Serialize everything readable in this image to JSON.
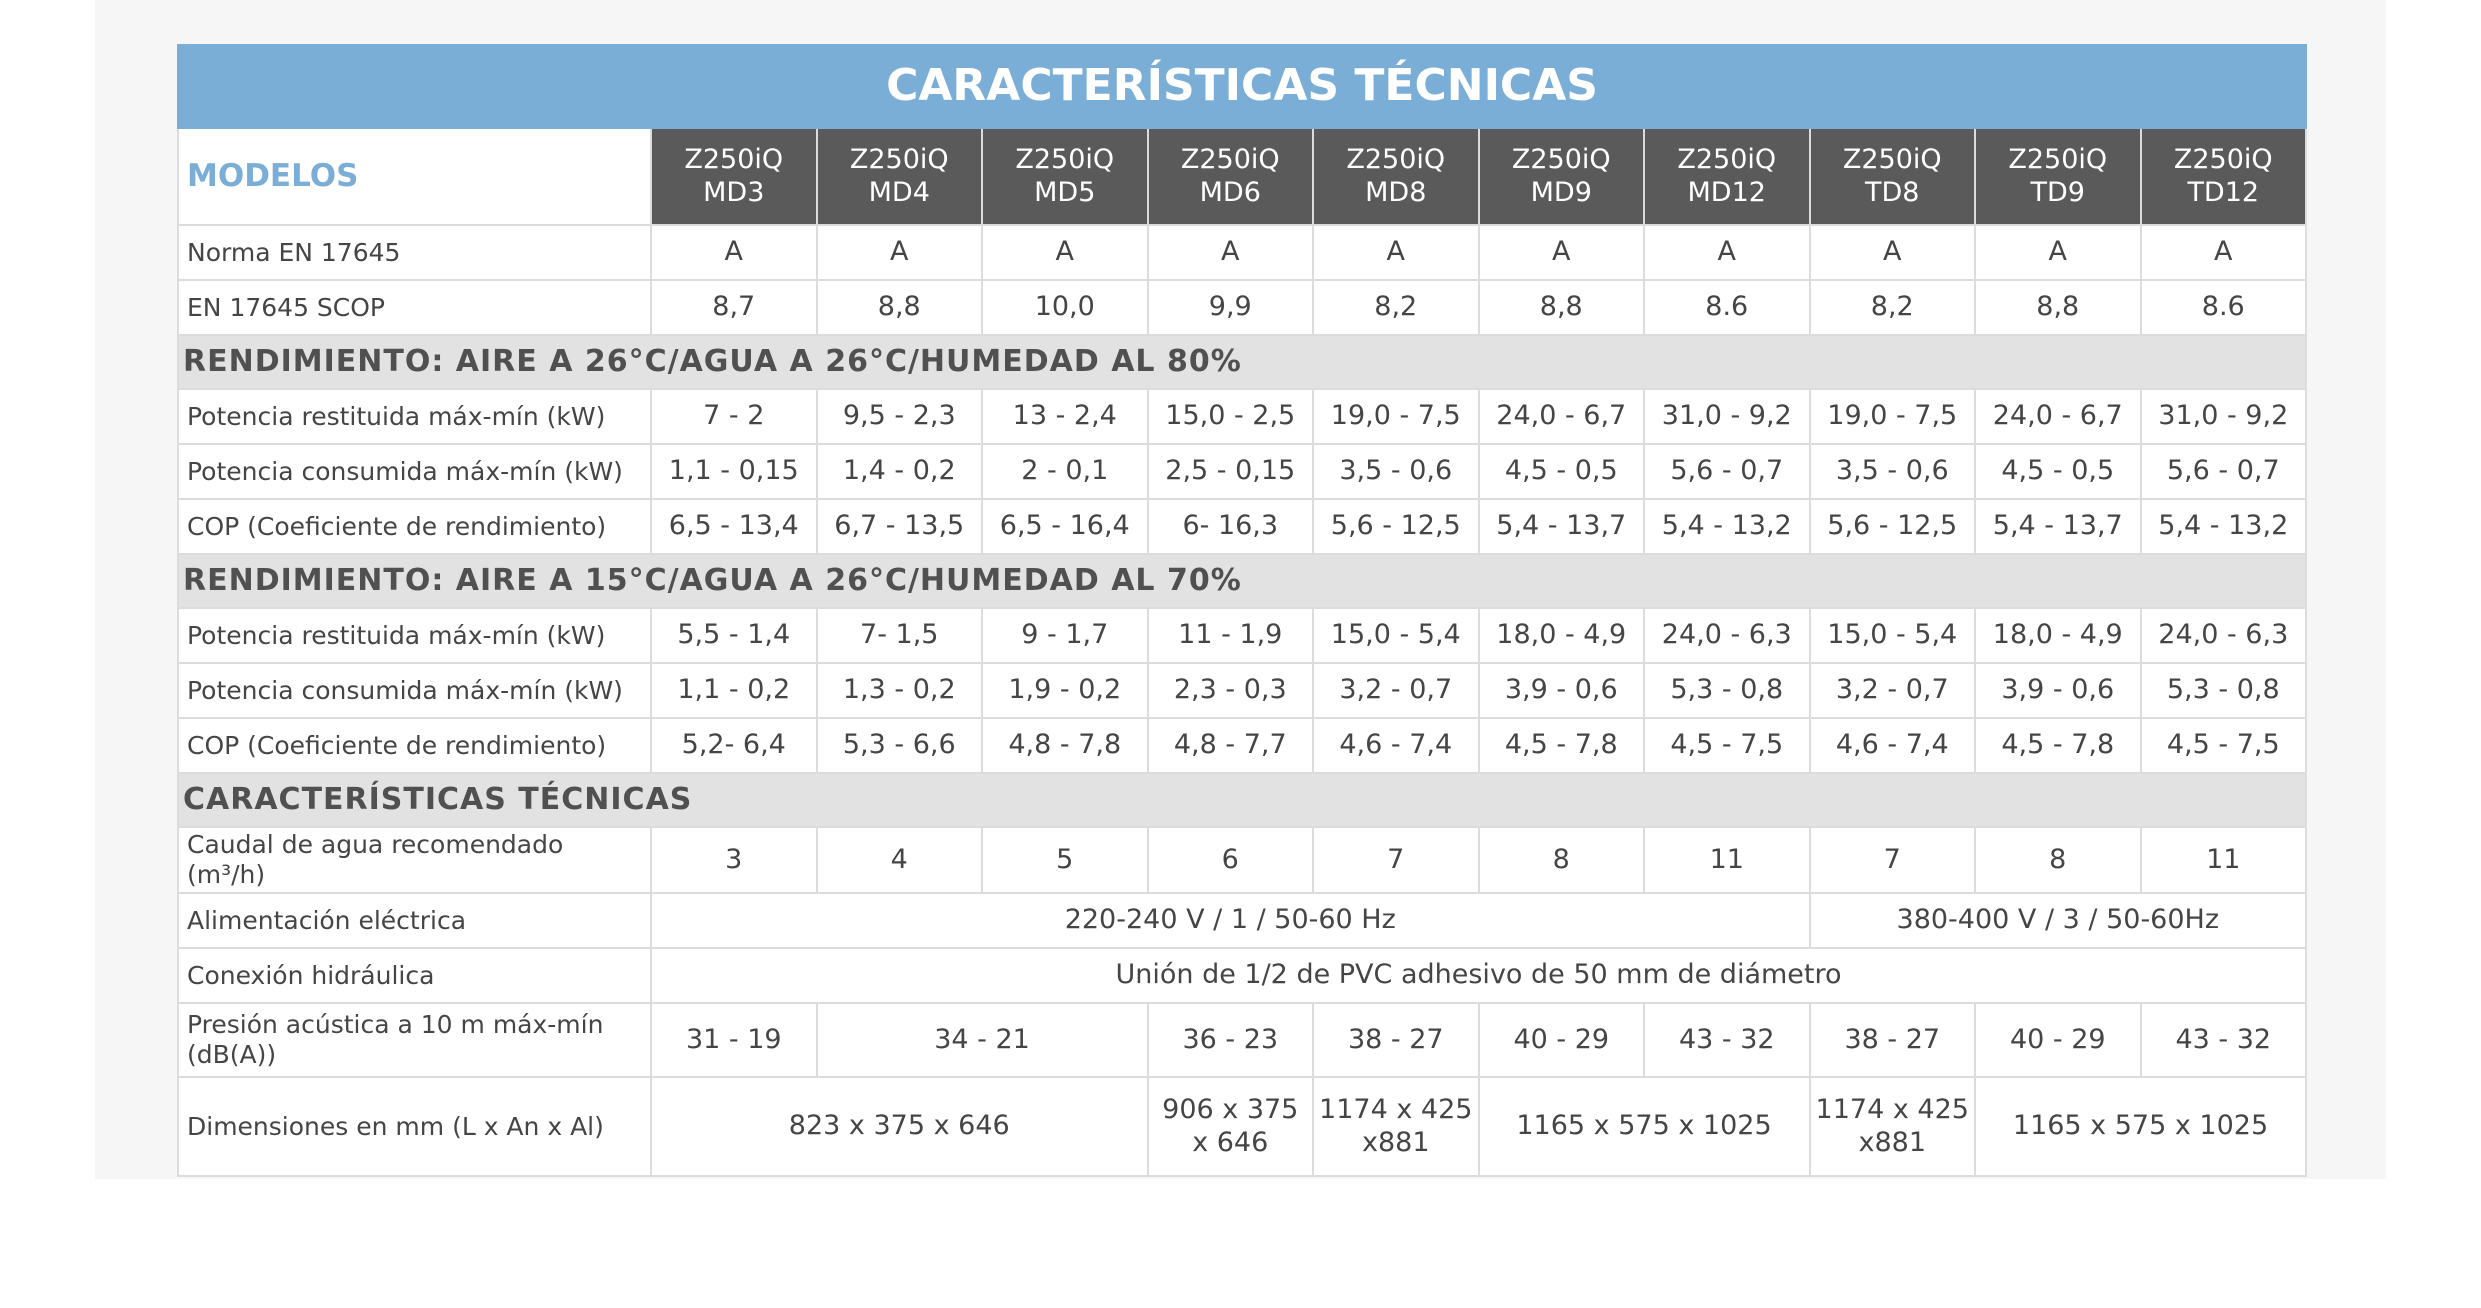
{
  "title": "CARACTERÍSTICAS TÉCNICAS",
  "table": {
    "header": {
      "label": "MODELOS",
      "models": [
        [
          "Z250iQ",
          "MD3"
        ],
        [
          "Z250iQ",
          "MD4"
        ],
        [
          "Z250iQ",
          "MD5"
        ],
        [
          "Z250iQ",
          "MD6"
        ],
        [
          "Z250iQ",
          "MD8"
        ],
        [
          "Z250iQ",
          "MD9"
        ],
        [
          "Z250iQ",
          "MD12"
        ],
        [
          "Z250iQ",
          "TD8"
        ],
        [
          "Z250iQ",
          "TD9"
        ],
        [
          "Z250iQ",
          "TD12"
        ]
      ]
    },
    "groups": [
      {
        "rows": [
          {
            "label": "Norma EN 17645",
            "cells": [
              "A",
              "A",
              "A",
              "A",
              "A",
              "A",
              "A",
              "A",
              "A",
              "A"
            ]
          },
          {
            "label": "EN 17645 SCOP",
            "cells": [
              "8,7",
              "8,8",
              "10,0",
              "9,9",
              "8,2",
              "8,8",
              "8.6",
              "8,2",
              "8,8",
              "8.6"
            ]
          }
        ]
      },
      {
        "title": "RENDIMIENTO: AIRE A 26°C/AGUA A 26°C/HUMEDAD AL 80%",
        "rows": [
          {
            "label": "Potencia restituida máx-mín (kW)",
            "cells": [
              "7 - 2",
              "9,5 - 2,3",
              "13 - 2,4",
              "15,0 - 2,5",
              "19,0 - 7,5",
              "24,0 - 6,7",
              "31,0 - 9,2",
              "19,0 - 7,5",
              "24,0 - 6,7",
              "31,0 - 9,2"
            ]
          },
          {
            "label": "Potencia consumida máx-mín (kW)",
            "cells": [
              "1,1 - 0,15",
              "1,4 - 0,2",
              "2 - 0,1",
              "2,5 - 0,15",
              "3,5 - 0,6",
              "4,5 - 0,5",
              "5,6 - 0,7",
              "3,5 - 0,6",
              "4,5 - 0,5",
              "5,6 - 0,7"
            ]
          },
          {
            "label": "COP (Coeficiente de rendimiento)",
            "cells": [
              "6,5 - 13,4",
              "6,7 - 13,5",
              "6,5 - 16,4",
              "6- 16,3",
              "5,6 - 12,5",
              "5,4 - 13,7",
              "5,4 - 13,2",
              "5,6 - 12,5",
              "5,4 - 13,7",
              "5,4 - 13,2"
            ]
          }
        ]
      },
      {
        "title": "RENDIMIENTO: AIRE A 15°C/AGUA A 26°C/HUMEDAD AL 70%",
        "rows": [
          {
            "label": "Potencia restituida máx-mín (kW)",
            "cells": [
              "5,5 - 1,4",
              "7- 1,5",
              "9 - 1,7",
              "11 - 1,9",
              "15,0 - 5,4",
              "18,0 - 4,9",
              "24,0 - 6,3",
              "15,0 - 5,4",
              "18,0 - 4,9",
              "24,0 - 6,3"
            ]
          },
          {
            "label": "Potencia consumida máx-mín (kW)",
            "cells": [
              "1,1 - 0,2",
              "1,3 - 0,2",
              "1,9 - 0,2",
              "2,3 - 0,3",
              "3,2 - 0,7",
              "3,9 - 0,6",
              "5,3 - 0,8",
              "3,2 - 0,7",
              "3,9 - 0,6",
              "5,3 - 0,8"
            ]
          },
          {
            "label": "COP (Coeficiente de rendimiento)",
            "cells": [
              "5,2- 6,4",
              "5,3 - 6,6",
              "4,8 - 7,8",
              "4,8 - 7,7",
              "4,6 - 7,4",
              "4,5 - 7,8",
              "4,5 - 7,5",
              "4,6 - 7,4",
              "4,5 - 7,8",
              "4,5 - 7,5"
            ]
          }
        ]
      },
      {
        "title": "CARACTERÍSTICAS TÉCNICAS",
        "rows": [
          {
            "label": "Caudal de agua recomendado (m³/h)",
            "cells": [
              "3",
              "4",
              "5",
              "6",
              "7",
              "8",
              "11",
              "7",
              "8",
              "11"
            ]
          },
          {
            "label": "Alimentación eléctrica",
            "cells": [
              "220-240 V / 1 / 50-60 Hz",
              "380-400 V / 3 / 50-60Hz"
            ]
          },
          {
            "label": "Conexión hidráulica",
            "cells": [
              "Unión de 1/2 de PVC adhesivo de 50 mm de diámetro"
            ]
          },
          {
            "label": "Presión acústica a 10 m máx-mín (dB(A))",
            "cells": [
              "31 - 19",
              "34 - 21",
              "36 - 23",
              "38 - 27",
              "40 - 29",
              "43 - 32",
              "38 - 27",
              "40 - 29",
              "43 - 32"
            ]
          },
          {
            "label": "Dimensiones en mm (L x An x Al)",
            "cells": [
              "823 x 375 x 646",
              "906 x 375 x 646",
              "1174 x 425 x881",
              "1165 x 575 x 1025",
              "1174 x 425 x881",
              "1165 x 575 x 1025"
            ]
          }
        ]
      }
    ]
  }
}
